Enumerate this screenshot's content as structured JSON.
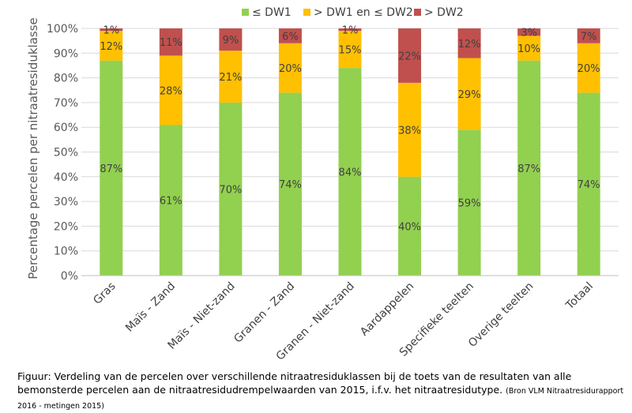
{
  "chart_data": {
    "type": "bar",
    "stacked": true,
    "title": "",
    "xlabel": "",
    "ylabel": "Percentage percelen per nitraatresiduklasse",
    "ylim": [
      0,
      100
    ],
    "yticks": [
      "0%",
      "10%",
      "20%",
      "30%",
      "40%",
      "50%",
      "60%",
      "70%",
      "80%",
      "90%",
      "100%"
    ],
    "grid": true,
    "legend_position": "top",
    "categories": [
      "Gras",
      "Maïs - Zand",
      "Maïs - Niet-zand",
      "Granen - Zand",
      "Granen - Niet-zand",
      "Aardappelen",
      "Specifieke teelten",
      "Overige teelten",
      "Totaal"
    ],
    "series": [
      {
        "name": "≤ DW1",
        "color": "#92d050",
        "values": [
          87,
          61,
          70,
          74,
          84,
          40,
          59,
          87,
          74
        ],
        "labels": [
          "87%",
          "61%",
          "70%",
          "74%",
          "84%",
          "40%",
          "59%",
          "87%",
          "74%"
        ]
      },
      {
        "name": "> DW1 en ≤ DW2",
        "color": "#ffc000",
        "values": [
          12,
          28,
          21,
          20,
          15,
          38,
          29,
          10,
          20
        ],
        "labels": [
          "12%",
          "28%",
          "21%",
          "20%",
          "15%",
          "38%",
          "29%",
          "10%",
          "20%"
        ]
      },
      {
        "name": "> DW2",
        "color": "#c0504d",
        "values": [
          1,
          11,
          9,
          6,
          1,
          22,
          12,
          3,
          7
        ],
        "labels": [
          "1%",
          "11%",
          "9%",
          "6%",
          "1%",
          "22%",
          "12%",
          "3%",
          "7%"
        ]
      }
    ]
  },
  "caption": {
    "main": "Figuur: Verdeling van de percelen over verschillende nitraatresiduklassen bij de toets van de resultaten van alle bemonsterde percelen aan de nitraatresidudrempelwaarden van 2015, i.f.v. het nitraatresidutype.",
    "source": "(Bron VLM Nitraatresidurapport 2016 - metingen 2015)"
  }
}
